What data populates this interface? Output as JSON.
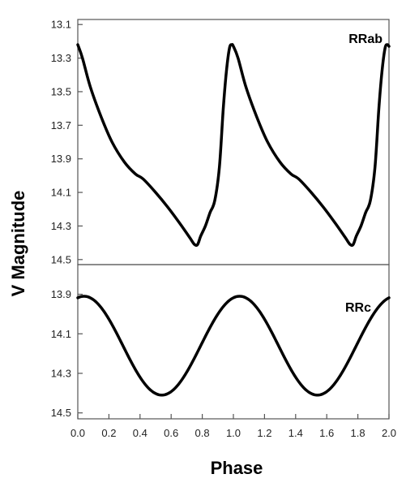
{
  "chart_data": {
    "type": "line",
    "xlabel": "Phase",
    "ylabel": "V Magnitude",
    "x_ticks": [
      "0.0",
      "0.2",
      "0.4",
      "0.6",
      "0.8",
      "1.0",
      "1.2",
      "1.4",
      "1.6",
      "1.8",
      "2.0"
    ],
    "xlim": [
      0.0,
      2.0
    ],
    "grid": false,
    "panels": [
      {
        "label": "RRab",
        "ylim": [
          13.07,
          14.53
        ],
        "y_inverted": true,
        "y_ticks": [
          "13.1",
          "13.3",
          "13.5",
          "13.7",
          "13.9",
          "14.1",
          "14.3",
          "14.5"
        ],
        "series": [
          {
            "x": [
              0.0,
              0.03,
              0.08,
              0.15,
              0.22,
              0.3,
              0.37,
              0.42,
              0.5,
              0.58,
              0.66,
              0.72,
              0.75,
              0.77,
              0.79,
              0.82,
              0.85,
              0.88,
              0.91,
              0.935,
              0.955,
              0.975,
              0.99,
              1.0,
              1.03,
              1.08,
              1.15,
              1.22,
              1.3,
              1.37,
              1.42,
              1.5,
              1.58,
              1.66,
              1.72,
              1.75,
              1.77,
              1.79,
              1.82,
              1.85,
              1.88,
              1.91,
              1.935,
              1.955,
              1.975,
              1.99,
              2.0
            ],
            "y": [
              13.22,
              13.3,
              13.47,
              13.65,
              13.8,
              13.92,
              13.99,
              14.02,
              14.1,
              14.19,
              14.29,
              14.37,
              14.41,
              14.41,
              14.36,
              14.3,
              14.22,
              14.15,
              13.95,
              13.6,
              13.38,
              13.24,
              13.22,
              13.23,
              13.3,
              13.47,
              13.65,
              13.8,
              13.92,
              13.99,
              14.02,
              14.1,
              14.19,
              14.29,
              14.37,
              14.41,
              14.41,
              14.36,
              14.3,
              14.22,
              14.15,
              13.95,
              13.6,
              13.38,
              13.24,
              13.22,
              13.23
            ]
          }
        ]
      },
      {
        "label": "RRc",
        "ylim": [
          13.75,
          14.53
        ],
        "y_inverted": true,
        "y_ticks": [
          "13.9",
          "14.1",
          "14.3",
          "14.5"
        ],
        "series": [
          {
            "mean": 14.16,
            "amplitude": 0.25,
            "min_phase": 0.54
          }
        ]
      }
    ]
  }
}
